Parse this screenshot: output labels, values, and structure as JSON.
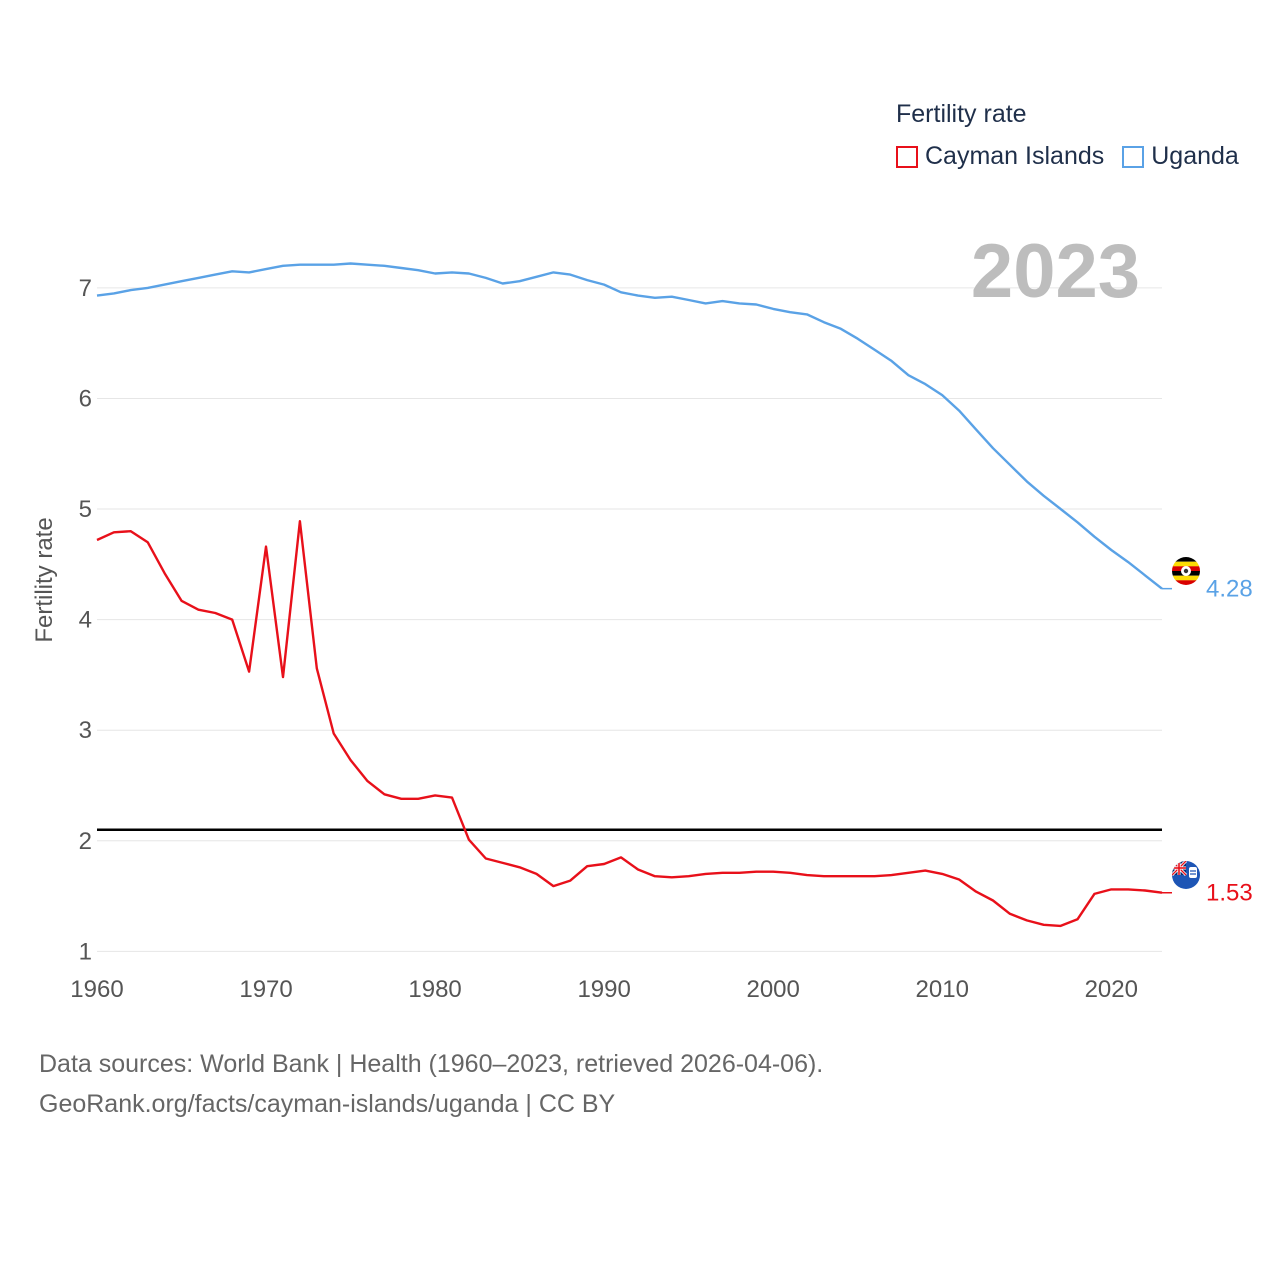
{
  "chart_data": {
    "type": "line",
    "title": "Fertility rate",
    "ylabel": "Fertility rate",
    "xlabel": "",
    "xlim": [
      1960,
      2023
    ],
    "ylim": [
      0.75,
      7.65
    ],
    "x_ticks": [
      1960,
      1970,
      1980,
      1990,
      2000,
      2010,
      2020
    ],
    "y_ticks": [
      1,
      2,
      3,
      4,
      5,
      6,
      7
    ],
    "year_label": "2023",
    "reference_line": {
      "value": 2.1,
      "color": "#000000"
    },
    "legend": {
      "title": "Fertility rate",
      "position": "top-right"
    },
    "series": [
      {
        "name": "Cayman Islands",
        "color": "#e8101a",
        "end_label": "1.53",
        "flag": "cayman-islands",
        "x": [
          1960,
          1961,
          1962,
          1963,
          1964,
          1965,
          1966,
          1967,
          1968,
          1969,
          1970,
          1971,
          1972,
          1973,
          1974,
          1975,
          1976,
          1977,
          1978,
          1979,
          1980,
          1981,
          1982,
          1983,
          1984,
          1985,
          1986,
          1987,
          1988,
          1989,
          1990,
          1991,
          1992,
          1993,
          1994,
          1995,
          1996,
          1997,
          1998,
          1999,
          2000,
          2001,
          2002,
          2003,
          2004,
          2005,
          2006,
          2007,
          2008,
          2009,
          2010,
          2011,
          2012,
          2013,
          2014,
          2015,
          2016,
          2017,
          2018,
          2019,
          2020,
          2021,
          2022,
          2023
        ],
        "values": [
          4.72,
          4.79,
          4.8,
          4.7,
          4.42,
          4.17,
          4.09,
          4.06,
          4.0,
          3.53,
          4.66,
          3.48,
          4.89,
          3.56,
          2.97,
          2.73,
          2.54,
          2.42,
          2.38,
          2.38,
          2.41,
          2.39,
          2.01,
          1.84,
          1.8,
          1.76,
          1.7,
          1.59,
          1.64,
          1.77,
          1.79,
          1.85,
          1.74,
          1.68,
          1.67,
          1.68,
          1.7,
          1.71,
          1.71,
          1.72,
          1.72,
          1.71,
          1.69,
          1.68,
          1.68,
          1.68,
          1.68,
          1.69,
          1.71,
          1.73,
          1.7,
          1.65,
          1.54,
          1.46,
          1.34,
          1.28,
          1.24,
          1.23,
          1.29,
          1.52,
          1.56,
          1.56,
          1.55,
          1.53
        ]
      },
      {
        "name": "Uganda",
        "color": "#5aa2e6",
        "end_label": "4.28",
        "flag": "uganda",
        "x": [
          1960,
          1961,
          1962,
          1963,
          1964,
          1965,
          1966,
          1967,
          1968,
          1969,
          1970,
          1971,
          1972,
          1973,
          1974,
          1975,
          1976,
          1977,
          1978,
          1979,
          1980,
          1981,
          1982,
          1983,
          1984,
          1985,
          1986,
          1987,
          1988,
          1989,
          1990,
          1991,
          1992,
          1993,
          1994,
          1995,
          1996,
          1997,
          1998,
          1999,
          2000,
          2001,
          2002,
          2003,
          2004,
          2005,
          2006,
          2007,
          2008,
          2009,
          2010,
          2011,
          2012,
          2013,
          2014,
          2015,
          2016,
          2017,
          2018,
          2019,
          2020,
          2021,
          2022,
          2023
        ],
        "values": [
          6.93,
          6.95,
          6.98,
          7.0,
          7.03,
          7.06,
          7.09,
          7.12,
          7.15,
          7.14,
          7.17,
          7.2,
          7.21,
          7.21,
          7.21,
          7.22,
          7.21,
          7.2,
          7.18,
          7.16,
          7.13,
          7.14,
          7.13,
          7.09,
          7.04,
          7.06,
          7.1,
          7.14,
          7.12,
          7.07,
          7.03,
          6.96,
          6.93,
          6.91,
          6.92,
          6.89,
          6.86,
          6.88,
          6.86,
          6.85,
          6.81,
          6.78,
          6.76,
          6.69,
          6.63,
          6.54,
          6.44,
          6.34,
          6.21,
          6.13,
          6.03,
          5.89,
          5.72,
          5.55,
          5.4,
          5.25,
          5.12,
          5.0,
          4.88,
          4.75,
          4.63,
          4.52,
          4.4,
          4.28
        ]
      }
    ]
  },
  "source": {
    "line1": "Data sources: World Bank | Health (1960–2023, retrieved 2026-04-06).",
    "line2": "GeoRank.org/facts/cayman-islands/uganda | CC BY"
  }
}
